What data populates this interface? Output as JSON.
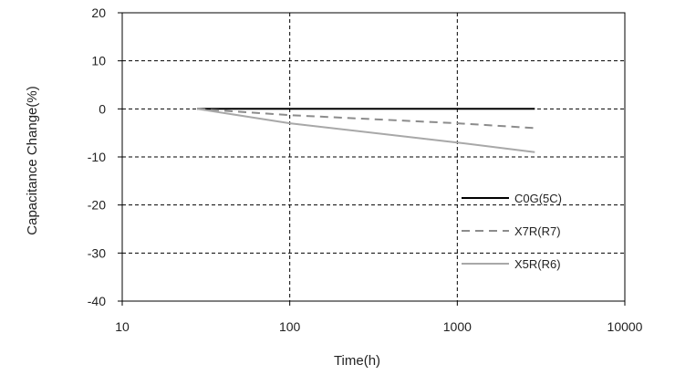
{
  "chart_data": {
    "type": "line",
    "xlabel": "Time(h)",
    "ylabel": "Capacitance Change(%)",
    "x_scale": "log",
    "xlim": [
      10,
      10000
    ],
    "ylim": [
      -40,
      20
    ],
    "x_ticks": [
      10,
      100,
      1000,
      10000
    ],
    "x_tick_labels": [
      "10",
      "100",
      "1000",
      "10000"
    ],
    "y_ticks": [
      20,
      10,
      0,
      -10,
      -20,
      -30,
      -40
    ],
    "y_tick_labels": [
      "20",
      "10",
      "0",
      "-10",
      "-20",
      "-30",
      "-40"
    ],
    "grid": true,
    "legend_position": "lower-right",
    "series": [
      {
        "name": "C0G(5C)",
        "color": "#000000",
        "style": "solid",
        "x": [
          28,
          2900
        ],
        "y": [
          0,
          0
        ]
      },
      {
        "name": "X7R(R7)",
        "color": "#8c8c8c",
        "style": "dashed",
        "x": [
          28,
          100,
          1000,
          2900
        ],
        "y": [
          0,
          -1.3,
          -3.0,
          -4.0
        ]
      },
      {
        "name": "X5R(R6)",
        "color": "#a8a8a8",
        "style": "solid",
        "x": [
          28,
          100,
          1000,
          2900
        ],
        "y": [
          0,
          -3.0,
          -7.0,
          -9.0
        ]
      }
    ]
  }
}
